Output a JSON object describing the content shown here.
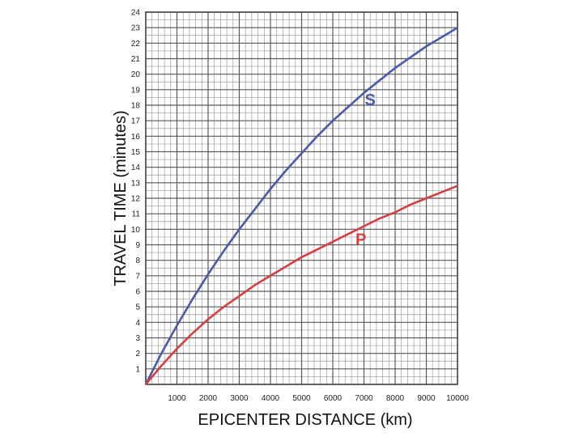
{
  "chart_data": {
    "type": "line",
    "xlabel": "EPICENTER DISTANCE (km)",
    "ylabel": "TRAVEL TIME (minutes)",
    "xlim": [
      0,
      10000
    ],
    "ylim": [
      0,
      24
    ],
    "x_ticks": [
      1000,
      2000,
      3000,
      4000,
      5000,
      6000,
      7000,
      8000,
      9000,
      10000
    ],
    "y_ticks": [
      1,
      2,
      3,
      4,
      5,
      6,
      7,
      8,
      9,
      10,
      11,
      12,
      13,
      14,
      15,
      16,
      17,
      18,
      19,
      20,
      21,
      22,
      23,
      24
    ],
    "grid": true,
    "minor_grid": {
      "x_step": 200,
      "y_step": 0.5
    },
    "series": [
      {
        "name": "S",
        "color": "#4a5aa8",
        "x": [
          0,
          500,
          1000,
          1500,
          2000,
          2500,
          3000,
          3500,
          4000,
          4500,
          5000,
          5500,
          6000,
          6500,
          7000,
          7500,
          8000,
          8500,
          9000,
          9500,
          10000
        ],
        "y": [
          0,
          2.0,
          3.8,
          5.5,
          7.1,
          8.6,
          10.0,
          11.3,
          12.6,
          13.8,
          14.9,
          16.0,
          17.0,
          17.9,
          18.8,
          19.6,
          20.4,
          21.1,
          21.8,
          22.4,
          23.0
        ]
      },
      {
        "name": "P",
        "color": "#d44040",
        "x": [
          0,
          500,
          1000,
          1500,
          2000,
          2500,
          3000,
          3500,
          4000,
          4500,
          5000,
          5500,
          6000,
          6500,
          7000,
          7500,
          8000,
          8500,
          9000,
          9500,
          10000
        ],
        "y": [
          0,
          1.2,
          2.3,
          3.3,
          4.2,
          5.0,
          5.7,
          6.4,
          7.0,
          7.6,
          8.2,
          8.7,
          9.2,
          9.7,
          10.2,
          10.7,
          11.1,
          11.6,
          12.0,
          12.4,
          12.8
        ]
      }
    ]
  }
}
